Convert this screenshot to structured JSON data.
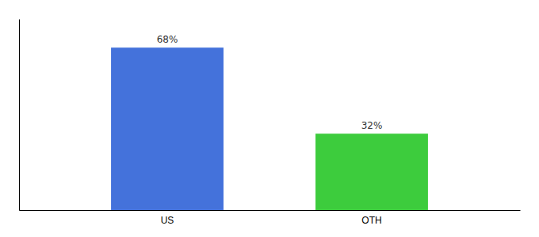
{
  "chart_data": {
    "type": "bar",
    "categories": [
      "US",
      "OTH"
    ],
    "values": [
      68,
      32
    ],
    "colors": [
      "#4472db",
      "#3dcc3d"
    ],
    "ylim": [
      0,
      80
    ],
    "data_labels": true,
    "value_labels": [
      "68%",
      "32%"
    ],
    "tick_labels": "x",
    "grid": false
  }
}
